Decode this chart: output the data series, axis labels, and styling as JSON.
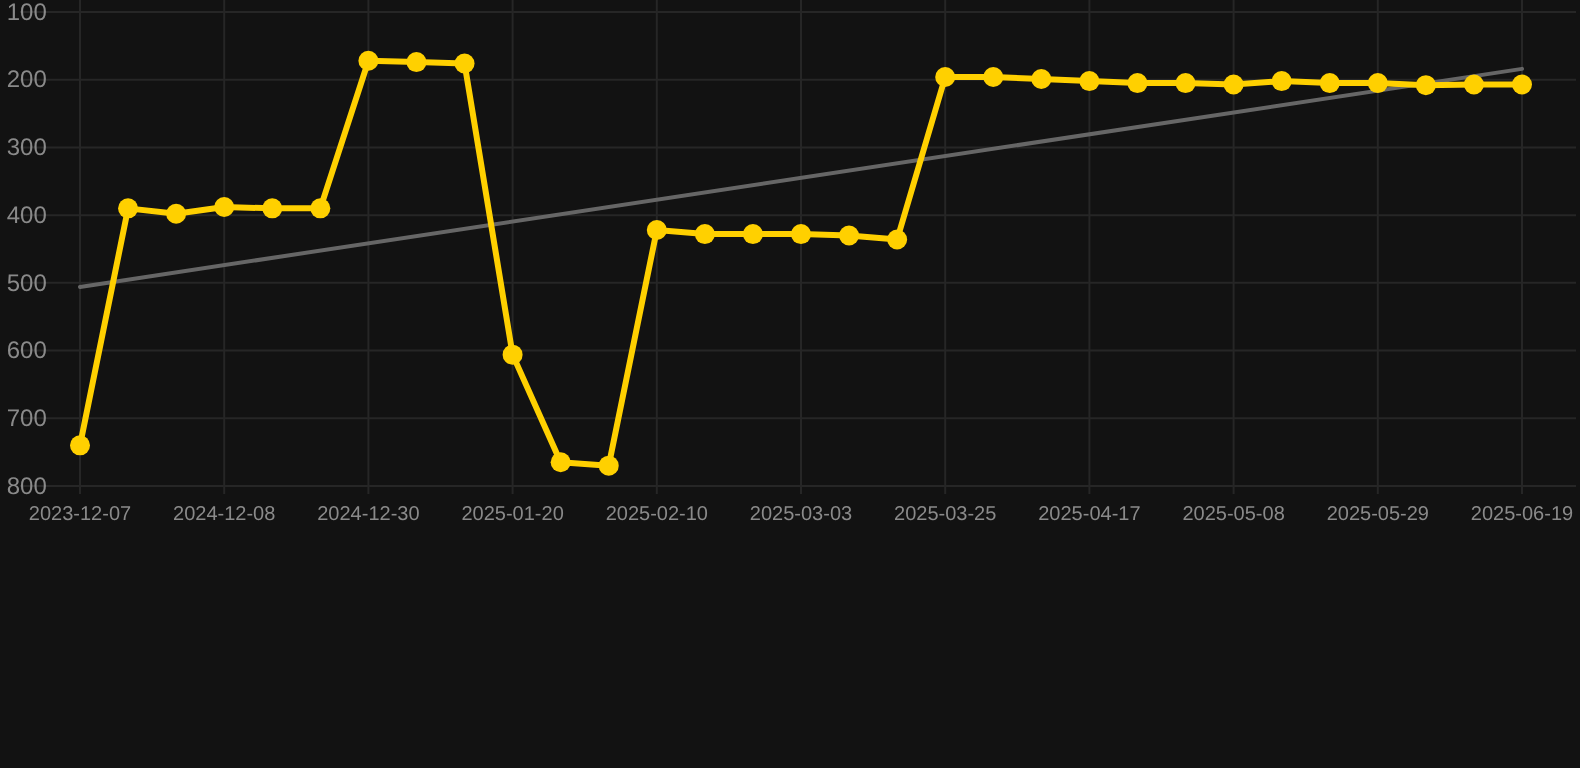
{
  "chart_data": {
    "type": "line",
    "categories": [
      "2023-12-07",
      null,
      null,
      "2024-12-08",
      null,
      null,
      "2024-12-30",
      null,
      null,
      "2025-01-20",
      null,
      null,
      "2025-02-10",
      null,
      null,
      "2025-03-03",
      null,
      null,
      "2025-03-25",
      null,
      null,
      "2025-04-17",
      null,
      null,
      "2025-05-08",
      null,
      null,
      "2025-05-29",
      null,
      null,
      "2025-06-19"
    ],
    "series": [
      {
        "color": "#ffd000",
        "marker": "circle",
        "values": [
          740,
          390,
          398,
          388,
          390,
          390,
          172,
          174,
          176,
          606,
          765,
          770,
          422,
          428,
          428,
          428,
          430,
          436,
          196,
          196,
          199,
          202,
          205,
          205,
          207,
          202,
          205,
          205,
          208,
          207,
          207
        ]
      },
      {
        "color": "#666666",
        "marker": "none",
        "values": [
          506,
          null,
          null,
          null,
          null,
          null,
          null,
          null,
          null,
          null,
          null,
          null,
          null,
          null,
          null,
          null,
          null,
          null,
          null,
          null,
          null,
          null,
          null,
          null,
          null,
          null,
          null,
          null,
          null,
          null,
          184
        ]
      }
    ],
    "ylim": [
      800,
      100
    ],
    "yticks": [
      100,
      200,
      300,
      400,
      500,
      600,
      700,
      800
    ],
    "grid": true
  }
}
